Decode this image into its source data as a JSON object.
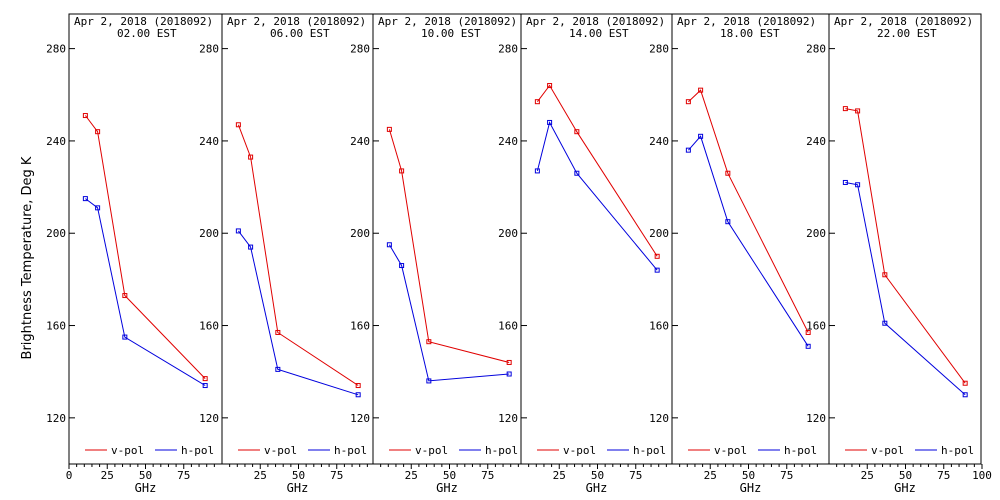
{
  "chart_data": {
    "type": "line",
    "ylabel": "Brightness Temperature, Deg K",
    "ylim": [
      100,
      295
    ],
    "xlim": [
      0,
      100
    ],
    "y_ticks": [
      "120",
      "160",
      "200",
      "240",
      "280"
    ],
    "grid": false,
    "legend_position": "bottom",
    "colors": {
      "v-pol": "#e00000",
      "h-pol": "#0000dd"
    },
    "panels": [
      {
        "title": "Apr  2, 2018 (2018092)",
        "subtitle": "02.00 EST",
        "xlabel": "GHz",
        "x_ticks": [
          "0",
          "25",
          "50",
          "75"
        ],
        "series": [
          {
            "name": "v-pol",
            "x": [
              10.7,
              18.7,
              36.5,
              89.0
            ],
            "y": [
              251,
              244,
              173,
              137
            ]
          },
          {
            "name": "h-pol",
            "x": [
              10.7,
              18.7,
              36.5,
              89.0
            ],
            "y": [
              215,
              211,
              155,
              134
            ]
          }
        ]
      },
      {
        "title": "Apr  2, 2018 (2018092)",
        "subtitle": "06.00 EST",
        "xlabel": "GHz",
        "x_ticks": [
          "25",
          "50",
          "75"
        ],
        "series": [
          {
            "name": "v-pol",
            "x": [
              10.7,
              18.7,
              36.5,
              89.0
            ],
            "y": [
              247,
              233,
              157,
              134
            ]
          },
          {
            "name": "h-pol",
            "x": [
              10.7,
              18.7,
              36.5,
              89.0
            ],
            "y": [
              201,
              194,
              141,
              130
            ]
          }
        ]
      },
      {
        "title": "Apr  2, 2018 (2018092)",
        "subtitle": "10.00 EST",
        "xlabel": "GHz",
        "x_ticks": [
          "25",
          "50",
          "75"
        ],
        "series": [
          {
            "name": "v-pol",
            "x": [
              10.7,
              18.7,
              36.5,
              89.0
            ],
            "y": [
              245,
              227,
              153,
              144
            ]
          },
          {
            "name": "h-pol",
            "x": [
              10.7,
              18.7,
              36.5,
              89.0
            ],
            "y": [
              195,
              186,
              136,
              139
            ]
          }
        ]
      },
      {
        "title": "Apr  2, 2018 (2018092)",
        "subtitle": "14.00 EST",
        "xlabel": "GHz",
        "x_ticks": [
          "25",
          "50",
          "75"
        ],
        "series": [
          {
            "name": "v-pol",
            "x": [
              10.7,
              18.7,
              36.5,
              89.0
            ],
            "y": [
              257,
              264,
              244,
              190
            ]
          },
          {
            "name": "h-pol",
            "x": [
              10.7,
              18.7,
              36.5,
              89.0
            ],
            "y": [
              227,
              248,
              226,
              184
            ]
          }
        ]
      },
      {
        "title": "Apr  2, 2018 (2018092)",
        "subtitle": "18.00 EST",
        "xlabel": "GHz",
        "x_ticks": [
          "25",
          "50",
          "75"
        ],
        "series": [
          {
            "name": "v-pol",
            "x": [
              10.7,
              18.7,
              36.5,
              89.0
            ],
            "y": [
              257,
              262,
              226,
              157
            ]
          },
          {
            "name": "h-pol",
            "x": [
              10.7,
              18.7,
              36.5,
              89.0
            ],
            "y": [
              236,
              242,
              205,
              151
            ]
          }
        ]
      },
      {
        "title": "Apr  2, 2018 (2018092)",
        "subtitle": "22.00 EST",
        "xlabel": "GHz",
        "x_ticks": [
          "25",
          "50",
          "75",
          "100"
        ],
        "series": [
          {
            "name": "v-pol",
            "x": [
              10.7,
              18.7,
              36.5,
              89.0
            ],
            "y": [
              254,
              253,
              182,
              135
            ]
          },
          {
            "name": "h-pol",
            "x": [
              10.7,
              18.7,
              36.5,
              89.0
            ],
            "y": [
              222,
              221,
              161,
              130
            ]
          }
        ]
      }
    ]
  }
}
